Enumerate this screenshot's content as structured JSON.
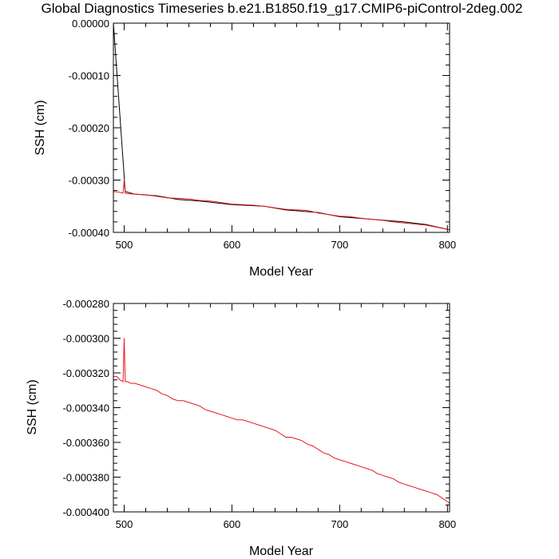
{
  "title": "Global Diagnostics Timeseries b.e21.B1850.f19_g17.CMIP6-piControl-2deg.002",
  "colors": {
    "black_series": "#000000",
    "red_series": "#e8151b"
  },
  "chart_data": [
    {
      "type": "line",
      "xlabel": "Model Year",
      "ylabel": "SSH (cm)",
      "xlim": [
        490,
        802
      ],
      "ylim": [
        -0.0004,
        0.0
      ],
      "xticks": [
        500,
        600,
        700,
        800
      ],
      "xtick_labels": [
        "500",
        "600",
        "700",
        "800"
      ],
      "yticks": [
        0.0,
        -0.0001,
        -0.0002,
        -0.0003,
        -0.0004
      ],
      "ytick_labels": [
        "0.00000",
        "-0.00010",
        "-0.00020",
        "-0.00030",
        "-0.00040"
      ],
      "series": [
        {
          "color": "#000000",
          "x": [
            490,
            501,
            510,
            530,
            550,
            570,
            600,
            630,
            650,
            680,
            700,
            730,
            760,
            780,
            802
          ],
          "y": [
            0.0,
            -0.000322,
            -0.000327,
            -0.00033,
            -0.000337,
            -0.00034,
            -0.000347,
            -0.00035,
            -0.000357,
            -0.000362,
            -0.00037,
            -0.000375,
            -0.00038,
            -0.000385,
            -0.000395
          ]
        },
        {
          "color": "#e8151b",
          "x": [
            490,
            495,
            499,
            500,
            501,
            503,
            510,
            520,
            530,
            540,
            550,
            560,
            570,
            580,
            590,
            600,
            610,
            620,
            630,
            640,
            650,
            660,
            670,
            680,
            690,
            700,
            710,
            720,
            730,
            740,
            750,
            760,
            770,
            780,
            790,
            802
          ],
          "y": [
            -0.000322,
            -0.000323,
            -0.000325,
            -0.0003,
            -0.000325,
            -0.000326,
            -0.000327,
            -0.000328,
            -0.000331,
            -0.000334,
            -0.000335,
            -0.000336,
            -0.000339,
            -0.00034,
            -0.000343,
            -0.000346,
            -0.000347,
            -0.000348,
            -0.00035,
            -0.000353,
            -0.000356,
            -0.000357,
            -0.000358,
            -0.000363,
            -0.000366,
            -0.000369,
            -0.00037,
            -0.000373,
            -0.000375,
            -0.000377,
            -0.00038,
            -0.000382,
            -0.000384,
            -0.000386,
            -0.00039,
            -0.000395
          ]
        }
      ]
    },
    {
      "type": "line",
      "xlabel": "Model Year",
      "ylabel": "SSH (cm)",
      "xlim": [
        490,
        802
      ],
      "ylim": [
        -0.0004,
        -0.00028
      ],
      "xticks": [
        500,
        600,
        700,
        800
      ],
      "xtick_labels": [
        "500",
        "600",
        "700",
        "800"
      ],
      "yticks": [
        -0.00028,
        -0.0003,
        -0.00032,
        -0.00034,
        -0.00036,
        -0.00038,
        -0.0004
      ],
      "ytick_labels": [
        "-0.000280",
        "-0.000300",
        "-0.000320",
        "-0.000340",
        "-0.000360",
        "-0.000380",
        "-0.000400"
      ],
      "series": [
        {
          "color": "#e8151b",
          "x": [
            490,
            493,
            496,
            499,
            500,
            501,
            503,
            506,
            510,
            515,
            520,
            525,
            530,
            535,
            540,
            545,
            550,
            555,
            560,
            565,
            570,
            575,
            580,
            585,
            590,
            595,
            600,
            605,
            610,
            615,
            620,
            625,
            630,
            635,
            640,
            645,
            650,
            655,
            660,
            665,
            670,
            675,
            680,
            685,
            690,
            695,
            700,
            705,
            710,
            715,
            720,
            725,
            730,
            735,
            740,
            745,
            750,
            755,
            760,
            765,
            770,
            775,
            780,
            785,
            790,
            795,
            802
          ],
          "y": [
            -0.000322,
            -0.000322,
            -0.000324,
            -0.000325,
            -0.0003,
            -0.000325,
            -0.000325,
            -0.000326,
            -0.000326,
            -0.000327,
            -0.000328,
            -0.000329,
            -0.00033,
            -0.000332,
            -0.000333,
            -0.000335,
            -0.000336,
            -0.000336,
            -0.000337,
            -0.000338,
            -0.000339,
            -0.000341,
            -0.000342,
            -0.000343,
            -0.000344,
            -0.000345,
            -0.000346,
            -0.000347,
            -0.000347,
            -0.000348,
            -0.000349,
            -0.00035,
            -0.000351,
            -0.000352,
            -0.000353,
            -0.000355,
            -0.000357,
            -0.000357,
            -0.000358,
            -0.000359,
            -0.000361,
            -0.000362,
            -0.000364,
            -0.000366,
            -0.000367,
            -0.000369,
            -0.00037,
            -0.000371,
            -0.000372,
            -0.000373,
            -0.000374,
            -0.000375,
            -0.000376,
            -0.000378,
            -0.000379,
            -0.00038,
            -0.000381,
            -0.000383,
            -0.000384,
            -0.000385,
            -0.000386,
            -0.000387,
            -0.000388,
            -0.000389,
            -0.00039,
            -0.000392,
            -0.000395
          ]
        }
      ]
    }
  ]
}
